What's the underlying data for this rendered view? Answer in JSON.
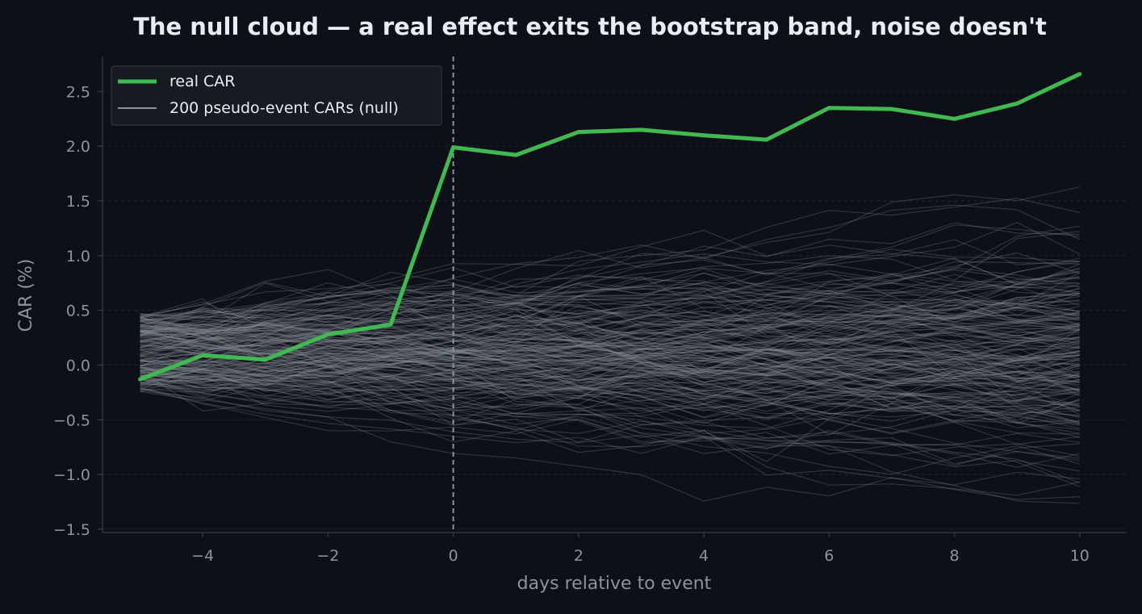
{
  "chart_data": {
    "type": "line",
    "title": "The null cloud — a real effect exits the bootstrap band, noise doesn't",
    "xlabel": "days relative to event",
    "ylabel": "CAR (%)",
    "xlim": [
      -5.6,
      10.75
    ],
    "ylim": [
      -1.53,
      2.82
    ],
    "x_ticks": [
      -4,
      -2,
      0,
      2,
      4,
      6,
      8,
      10
    ],
    "y_ticks": [
      -1.5,
      -1.0,
      -0.5,
      0.0,
      0.5,
      1.0,
      1.5,
      2.0,
      2.5
    ],
    "x_tick_labels": [
      "−4",
      "−2",
      "0",
      "2",
      "4",
      "6",
      "8",
      "10"
    ],
    "y_tick_labels": [
      "−1.5",
      "−1.0",
      "−0.5",
      "0.0",
      "0.5",
      "1.0",
      "1.5",
      "2.0",
      "2.5"
    ],
    "x": [
      -5,
      -4,
      -3,
      -2,
      -1,
      0,
      1,
      2,
      3,
      4,
      5,
      6,
      7,
      8,
      9,
      10
    ],
    "grid": "horizontal dashed",
    "event_marker_x": 0,
    "legend_position": "top-left",
    "series": [
      {
        "name": "real CAR",
        "color": "#3fb950",
        "values": [
          -0.13,
          0.09,
          0.05,
          0.28,
          0.37,
          1.99,
          1.92,
          2.13,
          2.15,
          2.1,
          2.06,
          2.35,
          2.34,
          2.25,
          2.39,
          2.66
        ]
      },
      {
        "name": "200 pseudo-event CARs (null)",
        "color": "#8b949e",
        "count": 200,
        "distribution": {
          "day_step_sd": 0.12,
          "start_range": [
            -0.25,
            0.47
          ],
          "band_at_day_10": [
            -1.3,
            1.2
          ]
        }
      }
    ],
    "colors": {
      "background": "#0d1017",
      "text": "#e6edf3",
      "muted_text": "#8b949e",
      "axis": "#30363d",
      "grid": "#1f2630",
      "real_line": "#3fb950",
      "null_line": "#8b949e",
      "event_line": "#8b949e",
      "legend_bg": "#161b22",
      "legend_border": "#30363d"
    }
  }
}
